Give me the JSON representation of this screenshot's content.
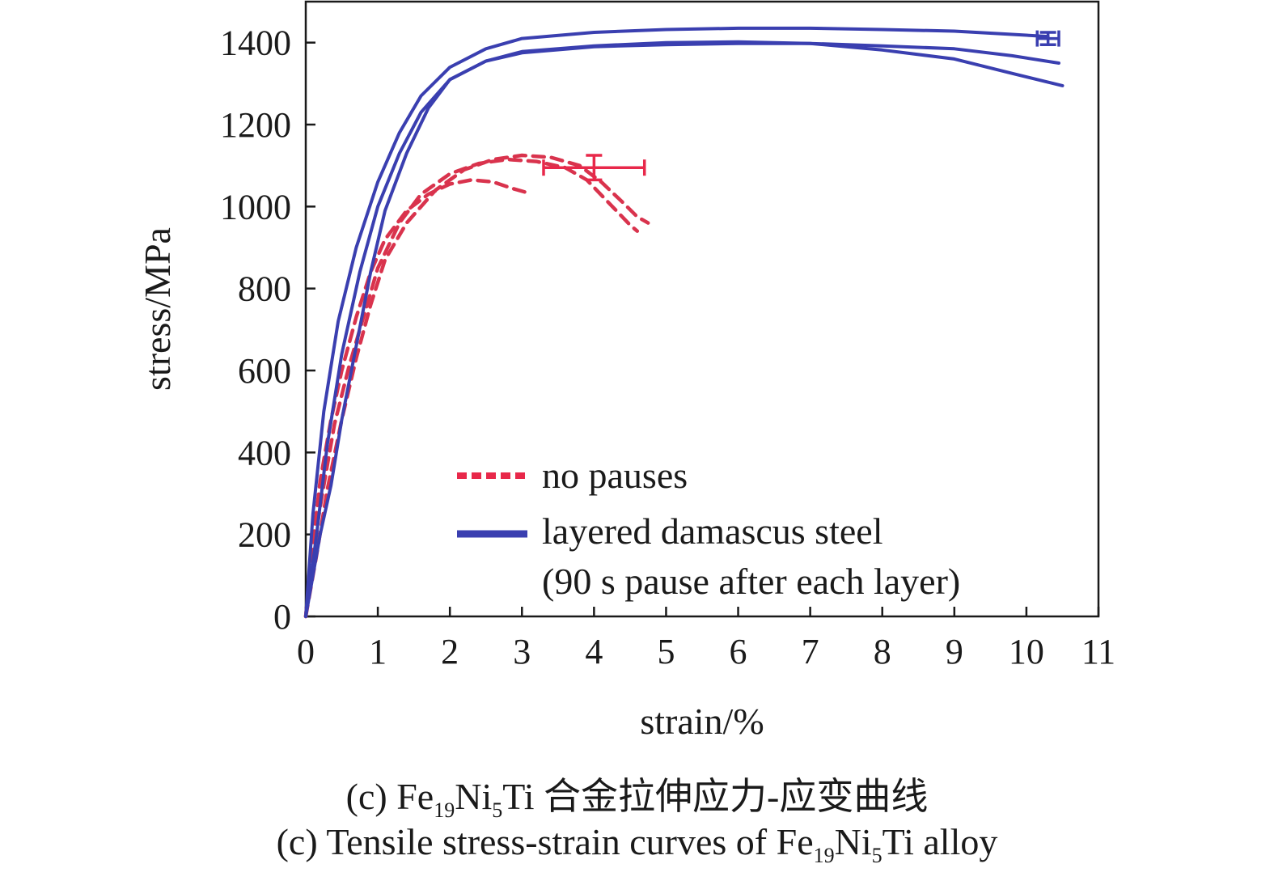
{
  "chart_data": {
    "type": "line",
    "xlabel": "strain/%",
    "ylabel": "stress/MPa",
    "xlim": [
      0,
      11
    ],
    "ylim": [
      0,
      1500
    ],
    "xticks": [
      "0",
      "1",
      "2",
      "3",
      "4",
      "5",
      "6",
      "7",
      "8",
      "9",
      "10",
      "11"
    ],
    "yticks": [
      "0",
      "200",
      "400",
      "600",
      "800",
      "1000",
      "1200",
      "1400"
    ],
    "grid": false,
    "legend_position": "bottom-right",
    "legend": [
      {
        "label": "no pauses",
        "style": "dashed",
        "color": "#e8284a"
      },
      {
        "label": "layered damascus steel",
        "label_line2": "(90 s pause after each layer)",
        "style": "solid",
        "color": "#3a3fb0"
      }
    ],
    "series": [
      {
        "group": "no pauses",
        "style": "dashed",
        "color": "#d9334d",
        "points": [
          [
            0,
            0
          ],
          [
            0.1,
            180
          ],
          [
            0.2,
            330
          ],
          [
            0.35,
            480
          ],
          [
            0.5,
            600
          ],
          [
            0.7,
            730
          ],
          [
            0.9,
            840
          ],
          [
            1.1,
            920
          ],
          [
            1.4,
            990
          ],
          [
            1.7,
            1030
          ],
          [
            2.0,
            1055
          ],
          [
            2.3,
            1065
          ],
          [
            2.6,
            1060
          ],
          [
            2.85,
            1045
          ],
          [
            3.05,
            1035
          ]
        ]
      },
      {
        "group": "no pauses",
        "style": "dashed",
        "color": "#d9334d",
        "points": [
          [
            0,
            0
          ],
          [
            0.1,
            160
          ],
          [
            0.25,
            320
          ],
          [
            0.4,
            470
          ],
          [
            0.6,
            610
          ],
          [
            0.8,
            730
          ],
          [
            1.0,
            850
          ],
          [
            1.3,
            960
          ],
          [
            1.6,
            1030
          ],
          [
            2.0,
            1080
          ],
          [
            2.4,
            1105
          ],
          [
            2.8,
            1115
          ],
          [
            3.2,
            1110
          ],
          [
            3.6,
            1095
          ],
          [
            3.9,
            1065
          ],
          [
            4.2,
            1010
          ],
          [
            4.5,
            955
          ],
          [
            4.6,
            940
          ]
        ]
      },
      {
        "group": "no pauses",
        "style": "dashed",
        "color": "#d9334d",
        "points": [
          [
            0,
            0
          ],
          [
            0.15,
            150
          ],
          [
            0.3,
            310
          ],
          [
            0.5,
            480
          ],
          [
            0.7,
            630
          ],
          [
            0.9,
            760
          ],
          [
            1.1,
            870
          ],
          [
            1.4,
            960
          ],
          [
            1.8,
            1040
          ],
          [
            2.2,
            1090
          ],
          [
            2.6,
            1115
          ],
          [
            3.0,
            1125
          ],
          [
            3.4,
            1120
          ],
          [
            3.8,
            1100
          ],
          [
            4.1,
            1060
          ],
          [
            4.4,
            1010
          ],
          [
            4.6,
            975
          ],
          [
            4.75,
            960
          ]
        ]
      },
      {
        "group": "layered damascus steel",
        "style": "solid",
        "color": "#3a3fb0",
        "points": [
          [
            0,
            0
          ],
          [
            0.1,
            250
          ],
          [
            0.25,
            500
          ],
          [
            0.45,
            720
          ],
          [
            0.7,
            900
          ],
          [
            1.0,
            1060
          ],
          [
            1.3,
            1180
          ],
          [
            1.6,
            1270
          ],
          [
            2.0,
            1340
          ],
          [
            2.5,
            1385
          ],
          [
            3.0,
            1410
          ],
          [
            4.0,
            1425
          ],
          [
            5.0,
            1432
          ],
          [
            6.0,
            1435
          ],
          [
            7.0,
            1435
          ],
          [
            8.0,
            1432
          ],
          [
            9.0,
            1428
          ],
          [
            9.8,
            1420
          ],
          [
            10.3,
            1415
          ]
        ]
      },
      {
        "group": "layered damascus steel",
        "style": "solid",
        "color": "#3a3fb0",
        "points": [
          [
            0,
            0
          ],
          [
            0.15,
            200
          ],
          [
            0.3,
            420
          ],
          [
            0.5,
            640
          ],
          [
            0.75,
            840
          ],
          [
            1.0,
            1000
          ],
          [
            1.3,
            1130
          ],
          [
            1.6,
            1230
          ],
          [
            2.0,
            1310
          ],
          [
            2.5,
            1355
          ],
          [
            3.0,
            1375
          ],
          [
            4.0,
            1390
          ],
          [
            5.0,
            1395
          ],
          [
            6.0,
            1398
          ],
          [
            7.0,
            1398
          ],
          [
            8.0,
            1392
          ],
          [
            9.0,
            1385
          ],
          [
            9.8,
            1368
          ],
          [
            10.45,
            1350
          ]
        ]
      },
      {
        "group": "layered damascus steel",
        "style": "solid",
        "color": "#3a3fb0",
        "points": [
          [
            0,
            0
          ],
          [
            0.2,
            200
          ],
          [
            0.35,
            320
          ],
          [
            0.5,
            480
          ],
          [
            0.7,
            660
          ],
          [
            0.9,
            840
          ],
          [
            1.1,
            990
          ],
          [
            1.4,
            1130
          ],
          [
            1.7,
            1240
          ],
          [
            2.0,
            1310
          ],
          [
            2.5,
            1355
          ],
          [
            3.0,
            1378
          ],
          [
            4.0,
            1392
          ],
          [
            5.0,
            1400
          ],
          [
            6.0,
            1402
          ],
          [
            7.0,
            1398
          ],
          [
            8.0,
            1382
          ],
          [
            9.0,
            1360
          ],
          [
            9.8,
            1325
          ],
          [
            10.5,
            1295
          ]
        ]
      }
    ],
    "error_bars": [
      {
        "group": "no pauses",
        "color": "#e8284a",
        "x": 4.0,
        "y": 1095,
        "xerr": [
          0.7,
          0.7
        ],
        "yerr": [
          30,
          30
        ]
      },
      {
        "group": "layered damascus steel",
        "color": "#3a3fb0",
        "x": 10.3,
        "y": 1410,
        "xerr": [
          0.15,
          0.15
        ],
        "yerr": [
          15,
          15
        ]
      }
    ]
  },
  "caption": {
    "cn_prefix": "(c) Fe",
    "cn_sub1": "19",
    "cn_mid": "Ni",
    "cn_sub2": "5",
    "cn_suffix": "Ti 合金拉伸应力-应变曲线",
    "en_prefix": "(c) Tensile stress-strain curves of Fe",
    "en_sub1": "19",
    "en_mid": "Ni",
    "en_sub2": "5",
    "en_suffix": "Ti alloy"
  }
}
